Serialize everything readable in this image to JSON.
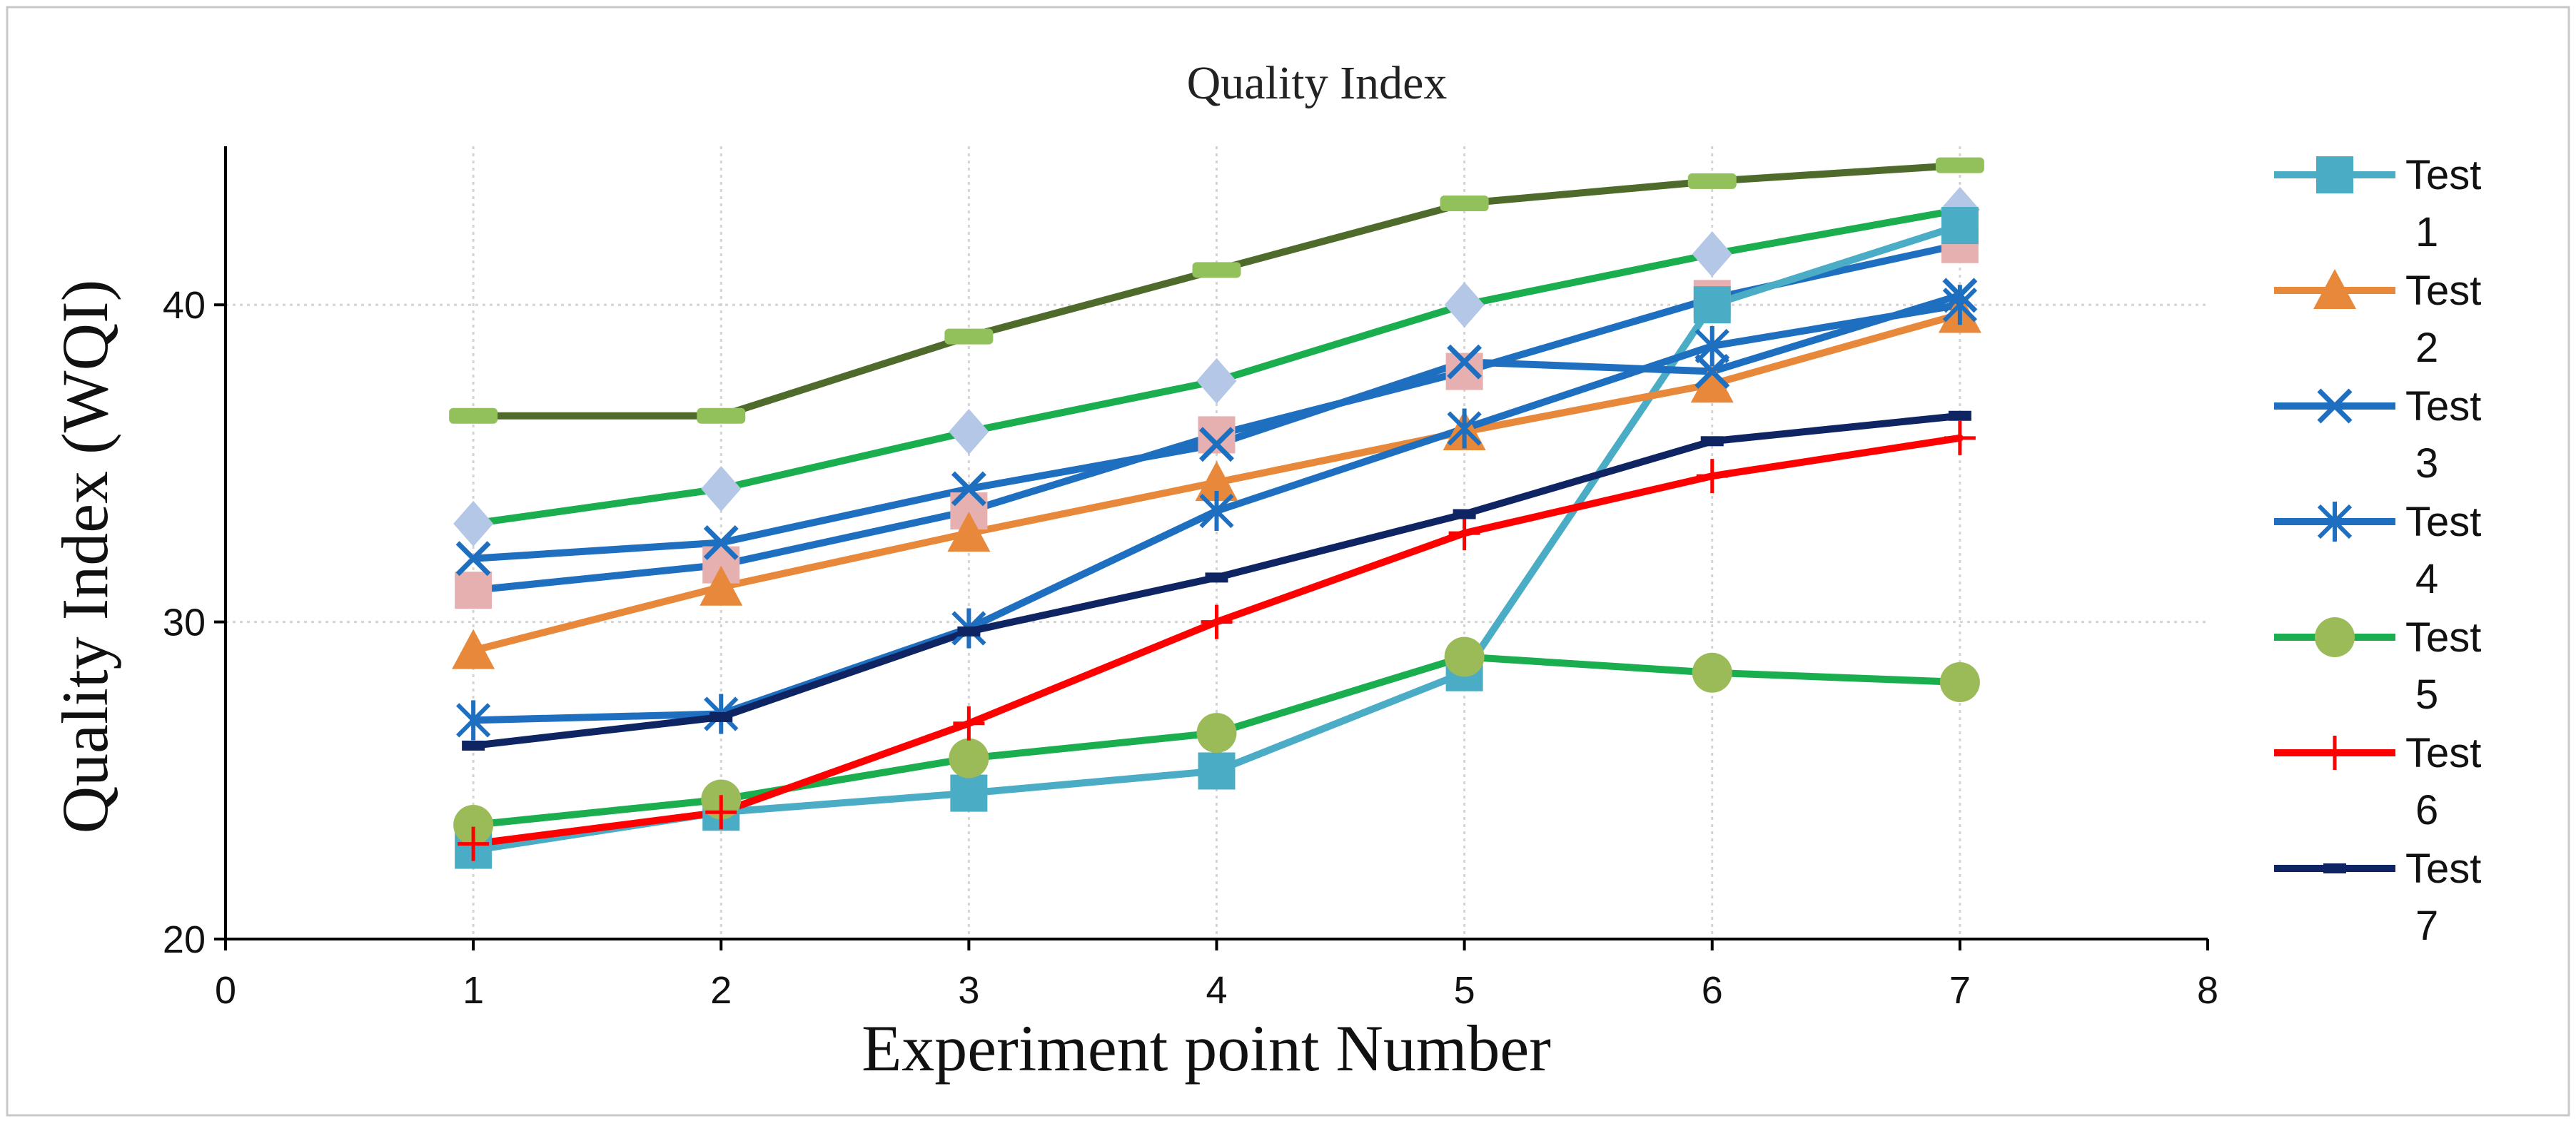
{
  "chart_data": {
    "type": "line",
    "title": "Quality Index",
    "xlabel": "Experiment point Number",
    "ylabel": "Quality Index (WQI)",
    "xlim": [
      0,
      8
    ],
    "ylim": [
      20,
      45
    ],
    "x_ticks": [
      0,
      1,
      2,
      3,
      4,
      5,
      6,
      7,
      8
    ],
    "y_ticks": [
      20,
      30,
      40
    ],
    "grid": "dotted",
    "legend_position": "right",
    "x": [
      1,
      2,
      3,
      4,
      5,
      6,
      7
    ],
    "series": [
      {
        "name": "Test 1",
        "color": "#4BACC6",
        "marker": "square",
        "values": [
          22.8,
          24.0,
          24.6,
          25.3,
          28.4,
          40.0,
          42.5
        ]
      },
      {
        "name": "Test 2",
        "color": "#E8883A",
        "marker": "triangle",
        "values": [
          29.1,
          31.1,
          32.8,
          34.4,
          36.0,
          37.5,
          39.7
        ]
      },
      {
        "name": "Test 3",
        "color": "#1F6FC0",
        "marker": "x",
        "values": [
          32.0,
          32.5,
          34.2,
          35.6,
          38.2,
          37.9,
          40.3
        ]
      },
      {
        "name": "Test 4",
        "color": "#1F6FC0",
        "marker": "star",
        "values": [
          26.9,
          27.1,
          29.8,
          33.5,
          36.1,
          38.7,
          40.0
        ]
      },
      {
        "name": "Test 5",
        "color": "#9BBB59",
        "line_color": "#1AAE4F",
        "marker": "circle",
        "values": [
          23.6,
          24.4,
          25.7,
          26.5,
          28.9,
          28.4,
          28.1
        ]
      },
      {
        "name": "Test 6",
        "color": "#FF0000",
        "marker": "plus",
        "values": [
          23.0,
          24.0,
          26.8,
          30.0,
          32.8,
          34.6,
          35.8
        ]
      },
      {
        "name": "Test 7",
        "color": "#0E2463",
        "marker": "dash",
        "values": [
          26.1,
          27.0,
          29.7,
          31.4,
          33.4,
          35.7,
          36.5
        ]
      }
    ],
    "unlabeled_series": [
      {
        "color": "#4E6B2B",
        "marker_color": "#92C05A",
        "marker": "bar",
        "values": [
          36.5,
          36.5,
          39.0,
          41.1,
          43.2,
          43.9,
          44.4
        ]
      },
      {
        "color": "#1AAE4F",
        "marker_color": "#B4C7E7",
        "marker": "diamond",
        "values": [
          33.1,
          34.2,
          36.0,
          37.6,
          40.0,
          41.6,
          43.0
        ]
      },
      {
        "color": "#1F6FC0",
        "marker_color": "#E6B0B0",
        "marker": "square",
        "values": [
          31.0,
          31.8,
          33.5,
          35.9,
          37.9,
          40.2,
          41.9
        ]
      }
    ]
  }
}
